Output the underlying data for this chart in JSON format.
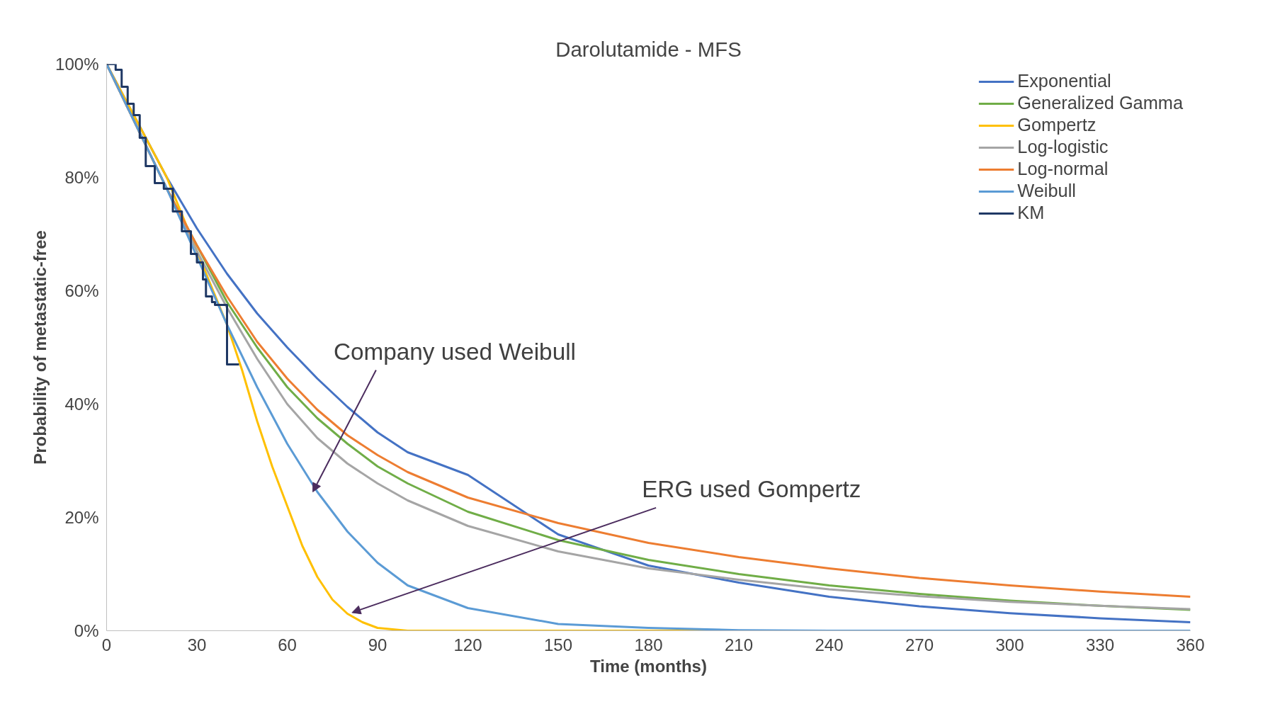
{
  "chart_data": {
    "type": "line",
    "title": "Darolutamide - MFS",
    "xlabel": "Time (months)",
    "ylabel": "Probability of metastatic-free",
    "xlim": [
      0,
      360
    ],
    "ylim": [
      0,
      100
    ],
    "xticks": [
      0,
      30,
      60,
      90,
      120,
      150,
      180,
      210,
      240,
      270,
      300,
      330,
      360
    ],
    "yticks": [
      {
        "value": 0,
        "label": "0%"
      },
      {
        "value": 20,
        "label": "20%"
      },
      {
        "value": 40,
        "label": "40%"
      },
      {
        "value": 60,
        "label": "60%"
      },
      {
        "value": 80,
        "label": "80%"
      },
      {
        "value": 100,
        "label": "100%"
      }
    ],
    "grid": false,
    "legend": "top right",
    "series": [
      {
        "name": "Exponential",
        "color": "#4472c4",
        "x": [
          0,
          10,
          20,
          30,
          40,
          50,
          60,
          70,
          80,
          90,
          100,
          120,
          150,
          180,
          210,
          240,
          270,
          300,
          330,
          360
        ],
        "values": [
          100,
          90,
          80,
          71,
          63,
          56,
          50,
          44.5,
          39.5,
          35,
          31.5,
          27.5,
          17,
          11.5,
          8.5,
          6,
          4.3,
          3.1,
          2.2,
          1.5
        ]
      },
      {
        "name": "Generalized Gamma",
        "color": "#70ad47",
        "x": [
          0,
          10,
          20,
          30,
          40,
          50,
          60,
          70,
          80,
          90,
          100,
          120,
          150,
          180,
          210,
          240,
          270,
          300,
          330,
          360
        ],
        "values": [
          100,
          89,
          78,
          68,
          58,
          50,
          43,
          37.5,
          33,
          29,
          26,
          21,
          16,
          12.5,
          10,
          8,
          6.5,
          5.3,
          4.4,
          3.7
        ]
      },
      {
        "name": "Gompertz",
        "color": "#ffc000",
        "x": [
          0,
          10,
          20,
          30,
          40,
          45,
          50,
          55,
          60,
          65,
          70,
          75,
          80,
          85,
          90,
          100,
          120,
          150,
          180,
          210
        ],
        "values": [
          100,
          90,
          80,
          67,
          54,
          46,
          37,
          29,
          22,
          15,
          9.5,
          5.5,
          3,
          1.5,
          0.5,
          0,
          0,
          0,
          0,
          0
        ]
      },
      {
        "name": "Log-logistic",
        "color": "#a5a5a5",
        "x": [
          0,
          10,
          20,
          30,
          40,
          50,
          60,
          70,
          80,
          90,
          100,
          120,
          150,
          180,
          210,
          240,
          270,
          300,
          330,
          360
        ],
        "values": [
          100,
          89,
          78,
          67,
          57,
          48,
          40,
          34,
          29.5,
          26,
          23,
          18.5,
          14,
          11,
          9,
          7.3,
          6.1,
          5.1,
          4.4,
          3.8
        ]
      },
      {
        "name": "Log-normal",
        "color": "#ed7d31",
        "x": [
          0,
          10,
          20,
          30,
          40,
          50,
          60,
          70,
          80,
          90,
          100,
          120,
          150,
          180,
          210,
          240,
          270,
          300,
          330,
          360
        ],
        "values": [
          100,
          89,
          78,
          68,
          59,
          51,
          44.5,
          39,
          34.5,
          31,
          28,
          23.5,
          19,
          15.5,
          13,
          11,
          9.3,
          8,
          6.9,
          6
        ]
      },
      {
        "name": "Weibull",
        "color": "#5b9bd5",
        "x": [
          0,
          10,
          20,
          30,
          40,
          50,
          60,
          70,
          80,
          90,
          100,
          120,
          150,
          180,
          210,
          240,
          270,
          300,
          330,
          360
        ],
        "values": [
          100,
          89,
          78,
          66,
          54,
          43,
          33,
          24.5,
          17.5,
          12,
          8,
          4,
          1.2,
          0.5,
          0.1,
          0,
          0,
          0,
          0,
          0
        ]
      },
      {
        "name": "KM",
        "type": "step",
        "color": "#1f3864",
        "x": [
          0,
          3,
          5,
          7,
          9,
          11,
          13,
          16,
          19,
          22,
          25,
          28,
          30,
          32,
          33,
          35,
          36,
          40,
          44
        ],
        "values": [
          100,
          99,
          96,
          93,
          91,
          87,
          82,
          79,
          78,
          74,
          70.5,
          66.5,
          65,
          62,
          59,
          58,
          57.5,
          47,
          47
        ]
      }
    ],
    "annotations": [
      {
        "text": "Company used Weibull",
        "x": 68.5,
        "y": 24.5
      },
      {
        "text": "ERG used Gompertz",
        "x": 81.5,
        "y": 3.2
      }
    ]
  }
}
